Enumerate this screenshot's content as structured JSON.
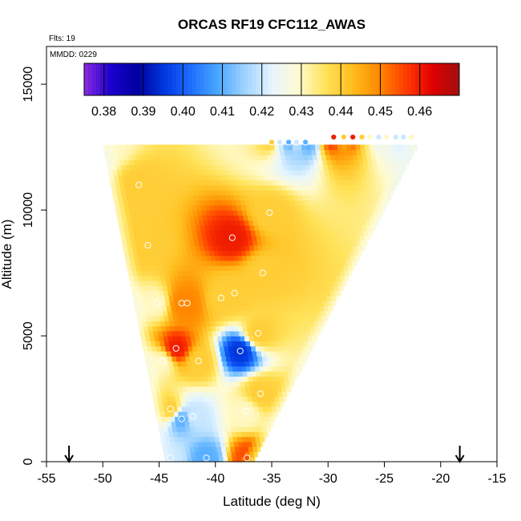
{
  "chart_data": {
    "type": "heatmap",
    "title": "ORCAS RF19 CFC112_AWAS",
    "annotations": {
      "flights": "Flts: 19",
      "mmdd": "MMDD: 0229"
    },
    "xlabel": "Latitude (deg N)",
    "ylabel": "Altitude (m)",
    "xlim": [
      -55,
      -15
    ],
    "ylim": [
      0,
      16500
    ],
    "x_ticks": [
      -55,
      -50,
      -45,
      -40,
      -35,
      -30,
      -25,
      -20,
      -15
    ],
    "x_tick_labels": [
      "-55",
      "-50",
      "-45",
      "-40",
      "-35",
      "-30",
      "-25",
      "-20",
      "-15"
    ],
    "y_ticks": [
      0,
      5000,
      10000,
      15000
    ],
    "y_tick_labels": [
      "0",
      "5000",
      "10000",
      "15000"
    ],
    "colorbar": {
      "min": 0.375,
      "max": 0.47,
      "ticks": [
        0.38,
        0.39,
        0.4,
        0.41,
        0.42,
        0.43,
        0.44,
        0.45,
        0.46
      ],
      "tick_labels": [
        "0.38",
        "0.39",
        "0.40",
        "0.41",
        "0.42",
        "0.43",
        "0.44",
        "0.45",
        "0.46"
      ],
      "colors": [
        "#8a2be2",
        "#1a00cc",
        "#0000a0",
        "#0038e0",
        "#1e6fff",
        "#4aa8ff",
        "#9fd3ff",
        "#e6f5ff",
        "#fffbd0",
        "#ffe35a",
        "#ffbe1e",
        "#ff8a00",
        "#ff3c00",
        "#e00000",
        "#a01010"
      ]
    },
    "coverage": {
      "lower_lat": [
        -44.5,
        -36.5
      ],
      "upper_lat": [
        -50,
        -22
      ],
      "top_alt": 12500
    },
    "arrows_lat": [
      -53,
      -18.3
    ],
    "observations": [
      {
        "lat": -49.5,
        "alt": 12500,
        "value": 0.43
      },
      {
        "lat": -46.8,
        "alt": 11000,
        "value": 0.44
      },
      {
        "lat": -46.0,
        "alt": 8600,
        "value": 0.44
      },
      {
        "lat": -38.5,
        "alt": 8900,
        "value": 0.46
      },
      {
        "lat": -35.2,
        "alt": 9900,
        "value": 0.44
      },
      {
        "lat": -35.8,
        "alt": 7500,
        "value": 0.44
      },
      {
        "lat": -45.2,
        "alt": 6300,
        "value": 0.43
      },
      {
        "lat": -43.0,
        "alt": 6300,
        "value": 0.45
      },
      {
        "lat": -42.5,
        "alt": 6300,
        "value": 0.45
      },
      {
        "lat": -39.5,
        "alt": 6500,
        "value": 0.44
      },
      {
        "lat": -38.3,
        "alt": 6700,
        "value": 0.44
      },
      {
        "lat": -36.2,
        "alt": 5100,
        "value": 0.44
      },
      {
        "lat": -43.5,
        "alt": 4500,
        "value": 0.46
      },
      {
        "lat": -37.8,
        "alt": 4400,
        "value": 0.395
      },
      {
        "lat": -44.7,
        "alt": 4000,
        "value": 0.43
      },
      {
        "lat": -41.5,
        "alt": 4000,
        "value": 0.44
      },
      {
        "lat": -36.0,
        "alt": 2700,
        "value": 0.44
      },
      {
        "lat": -44.0,
        "alt": 2100,
        "value": 0.44
      },
      {
        "lat": -37.3,
        "alt": 2000,
        "value": 0.43
      },
      {
        "lat": -43.0,
        "alt": 1700,
        "value": 0.41
      },
      {
        "lat": -42.0,
        "alt": 1800,
        "value": 0.42
      },
      {
        "lat": -44.0,
        "alt": 150,
        "value": 0.42
      },
      {
        "lat": -40.8,
        "alt": 150,
        "value": 0.41
      },
      {
        "lat": -37.2,
        "alt": 150,
        "value": 0.455
      },
      {
        "lat": -35.0,
        "alt": 12700,
        "value": 0.44
      },
      {
        "lat": -34.3,
        "alt": 12700,
        "value": 0.42
      },
      {
        "lat": -33.5,
        "alt": 12700,
        "value": 0.41
      },
      {
        "lat": -32.8,
        "alt": 12700,
        "value": 0.42
      },
      {
        "lat": -32.0,
        "alt": 12700,
        "value": 0.41
      },
      {
        "lat": -29.5,
        "alt": 12900,
        "value": 0.46
      },
      {
        "lat": -28.6,
        "alt": 12900,
        "value": 0.44
      },
      {
        "lat": -27.8,
        "alt": 12900,
        "value": 0.46
      },
      {
        "lat": -27.0,
        "alt": 12900,
        "value": 0.44
      },
      {
        "lat": -26.3,
        "alt": 12900,
        "value": 0.43
      },
      {
        "lat": -25.5,
        "alt": 12900,
        "value": 0.42
      },
      {
        "lat": -24.8,
        "alt": 12900,
        "value": 0.43
      },
      {
        "lat": -24.0,
        "alt": 12900,
        "value": 0.42
      },
      {
        "lat": -23.3,
        "alt": 12900,
        "value": 0.42
      },
      {
        "lat": -22.6,
        "alt": 12900,
        "value": 0.43
      }
    ]
  }
}
